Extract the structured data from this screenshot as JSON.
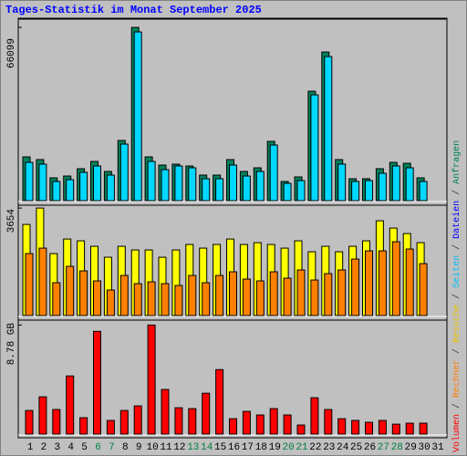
{
  "chart_data": [
    {
      "type": "bar",
      "ylim": [
        0,
        68900
      ],
      "yticks": [
        66099
      ],
      "series": [
        {
          "color": "#00805c",
          "values": [
            16700,
            15660,
            8700,
            9390,
            12180,
            14960,
            11130,
            22960,
            66099,
            16700,
            13570,
            13920,
            13220,
            9740,
            9740,
            15660,
            11130,
            12520,
            22610,
            7310,
            9050,
            41750,
            56710,
            15660,
            8350,
            8350,
            12180,
            14610,
            14260,
            8700,
            null
          ]
        },
        {
          "color": "#00d8ff",
          "values": [
            14610,
            13920,
            7310,
            8000,
            10790,
            13220,
            9740,
            21570,
            64360,
            14960,
            11830,
            13220,
            12520,
            8350,
            8350,
            13570,
            9390,
            11130,
            21220,
            6610,
            7650,
            40360,
            54970,
            13920,
            7310,
            7650,
            10440,
            13220,
            12520,
            7310,
            null
          ]
        }
      ]
    },
    {
      "type": "bar",
      "ylim": [
        0,
        3720
      ],
      "yticks": [
        3654
      ],
      "series": [
        {
          "color": "#ffff00",
          "values": [
            3097,
            3654,
            2106,
            2601,
            2540,
            2354,
            1982,
            2354,
            2230,
            2230,
            1982,
            2230,
            2416,
            2292,
            2416,
            2601,
            2416,
            2478,
            2416,
            2292,
            2540,
            2168,
            2354,
            2168,
            2354,
            2540,
            3221,
            2973,
            2787,
            2478,
            null
          ]
        },
        {
          "color": "#ff8000",
          "values": [
            2106,
            2292,
            1115,
            1672,
            1518,
            1177,
            867,
            1363,
            1084,
            1146,
            1084,
            1022,
            1363,
            1115,
            1363,
            1487,
            1239,
            1177,
            1487,
            1270,
            1549,
            1208,
            1425,
            1549,
            1920,
            2199,
            2199,
            2509,
            2261,
            1765,
            null
          ]
        }
      ]
    },
    {
      "type": "bar",
      "ylim": [
        0,
        9.1
      ],
      "yticks": [
        {
          "value": 8.78,
          "label": "8.78 GB"
        }
      ],
      "categories": [
        "1",
        "2",
        "3",
        "4",
        "5",
        "6",
        "7",
        "8",
        "9",
        "10",
        "11",
        "12",
        "13",
        "14",
        "15",
        "16",
        "17",
        "18",
        "19",
        "20",
        "21",
        "22",
        "23",
        "24",
        "25",
        "26",
        "27",
        "28",
        "29",
        "30",
        "31"
      ],
      "label_colors": [
        "#000000",
        "#000000",
        "#000000",
        "#000000",
        "#000000",
        "#008040",
        "#008040",
        "#000000",
        "#000000",
        "#000000",
        "#000000",
        "#000000",
        "#008040",
        "#008040",
        "#000000",
        "#000000",
        "#000000",
        "#000000",
        "#000000",
        "#008040",
        "#008040",
        "#000000",
        "#000000",
        "#000000",
        "#000000",
        "#000000",
        "#008040",
        "#008040",
        "#000000",
        "#000000",
        "#000000"
      ],
      "series": [
        {
          "color": "#ff0000",
          "values": [
            1.9,
            3.0,
            1.98,
            4.68,
            1.32,
            8.27,
            1.1,
            1.9,
            2.27,
            8.78,
            3.59,
            2.12,
            2.05,
            3.29,
            5.19,
            1.24,
            1.83,
            1.54,
            2.05,
            1.54,
            0.73,
            2.93,
            1.98,
            1.24,
            1.1,
            0.95,
            1.1,
            0.8,
            0.88,
            0.88,
            null
          ]
        }
      ]
    }
  ],
  "title": "Tages-Statistik im Monat September 2025",
  "legend_separator": " / ",
  "legend": [
    {
      "name": "Volumen",
      "color": "#ff0000"
    },
    {
      "name": "Rechner",
      "color": "#ff8000"
    },
    {
      "name": "Besuche",
      "color": "#e8c000"
    },
    {
      "name": "Seiten",
      "color": "#00c0ff"
    },
    {
      "name": "Dateien",
      "color": "#0000ff"
    },
    {
      "name": "Anfragen",
      "color": "#00805c"
    }
  ]
}
